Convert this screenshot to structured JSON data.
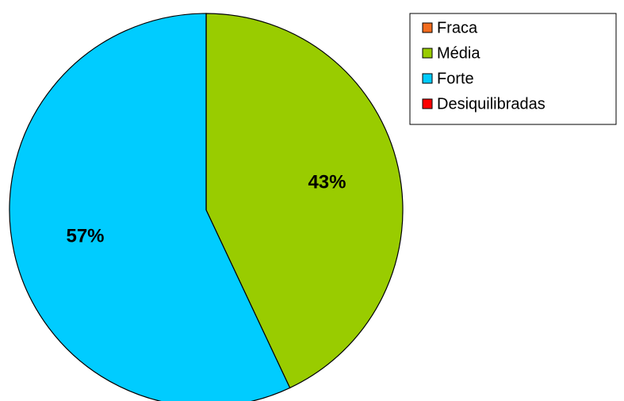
{
  "chart_data": {
    "type": "pie",
    "categories": [
      "Fraca",
      "Média",
      "Forte",
      "Desiquilibradas"
    ],
    "values": [
      0,
      43,
      57,
      0
    ],
    "value_labels": [
      null,
      "43%",
      "57%",
      null
    ],
    "colors": [
      "#f26c1e",
      "#99cc00",
      "#00ccff",
      "#ff0000"
    ],
    "legend": "top-right"
  }
}
